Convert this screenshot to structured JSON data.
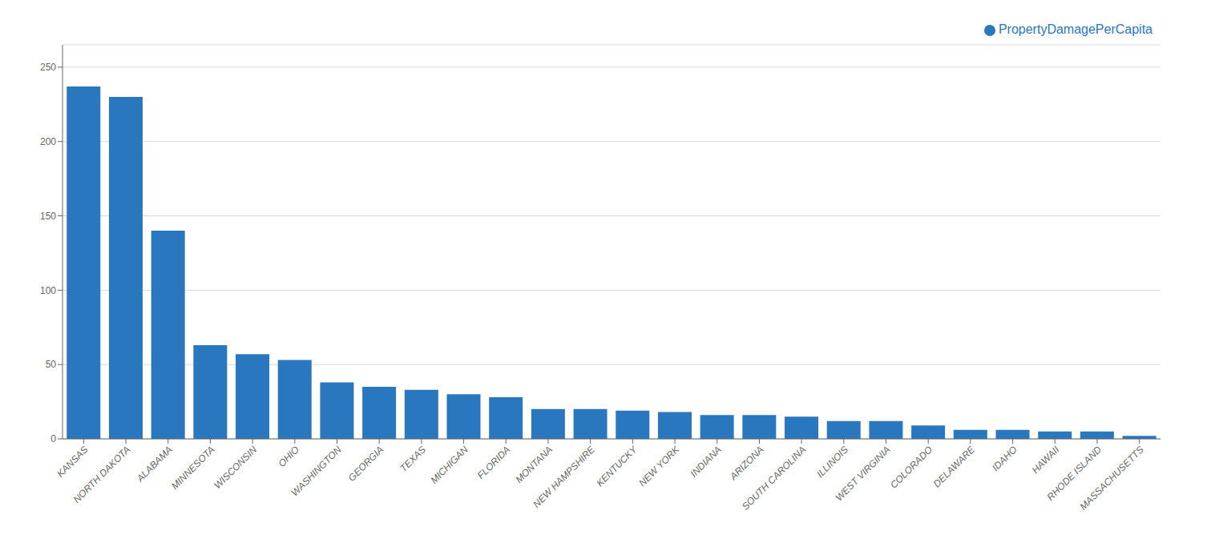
{
  "chart_data": {
    "type": "bar",
    "categories": [
      "KANSAS",
      "NORTH DAKOTA",
      "ALABAMA",
      "MINNESOTA",
      "WISCONSIN",
      "OHIO",
      "WASHINGTON",
      "GEORGIA",
      "TEXAS",
      "MICHIGAN",
      "FLORIDA",
      "MONTANA",
      "NEW HAMPSHIRE",
      "KENTUCKY",
      "NEW YORK",
      "INDIANA",
      "ARIZONA",
      "SOUTH CAROLINA",
      "ILLINOIS",
      "WEST VIRGINIA",
      "COLORADO",
      "DELAWARE",
      "IDAHO",
      "HAWAII",
      "RHODE ISLAND",
      "MASSACHUSETTS"
    ],
    "series": [
      {
        "name": "PropertyDamagePerCapita",
        "color": "#2977BE",
        "values": [
          237,
          230,
          140,
          63,
          57,
          53,
          38,
          35,
          33,
          30,
          28,
          20,
          20,
          19,
          18,
          16,
          16,
          15,
          12,
          12,
          9,
          6,
          6,
          5,
          5,
          2
        ]
      }
    ],
    "ylim": [
      0,
      265
    ],
    "yticks": [
      0,
      50,
      100,
      150,
      200,
      250
    ],
    "grid": true,
    "legend": "upper right"
  }
}
